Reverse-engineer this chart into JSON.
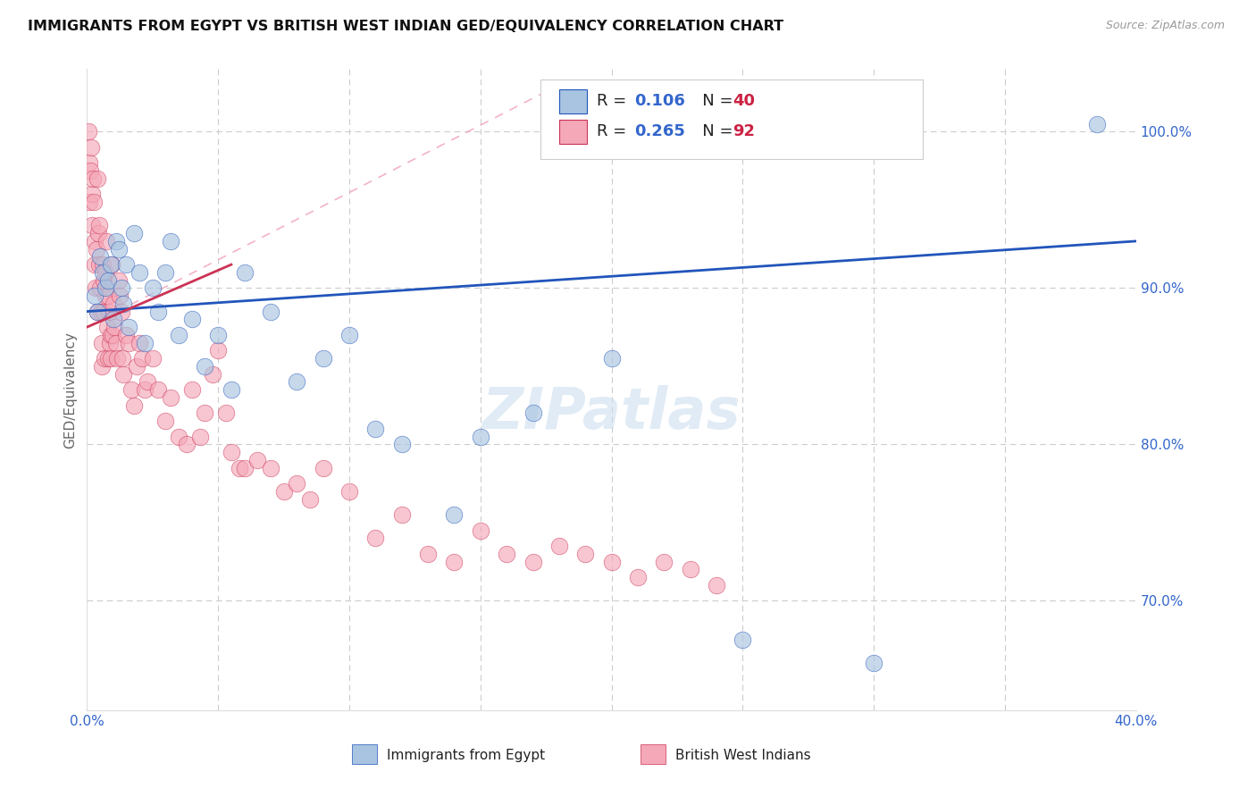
{
  "title": "IMMIGRANTS FROM EGYPT VS BRITISH WEST INDIAN GED/EQUIVALENCY CORRELATION CHART",
  "source": "Source: ZipAtlas.com",
  "ylabel": "GED/Equivalency",
  "xlim": [
    0.0,
    40.0
  ],
  "ylim": [
    63.0,
    104.0
  ],
  "legend_egypt": "Immigrants from Egypt",
  "legend_bwi": "British West Indians",
  "R_egypt": "0.106",
  "N_egypt": "40",
  "R_bwi": "0.265",
  "N_bwi": "92",
  "egypt_color": "#A8C4E0",
  "bwi_color": "#F4A8B8",
  "egypt_line_color": "#2255BB",
  "bwi_line_color": "#CC3355",
  "egypt_trend": [
    0.0,
    40.0,
    88.5,
    93.0
  ],
  "bwi_trend": [
    0.0,
    5.5,
    87.5,
    91.5
  ],
  "ref_line": [
    0.0,
    18.0,
    87.5,
    103.0
  ],
  "egypt_scatter_x": [
    0.3,
    0.4,
    0.5,
    0.6,
    0.7,
    0.8,
    0.9,
    1.0,
    1.1,
    1.2,
    1.3,
    1.4,
    1.5,
    1.6,
    1.8,
    2.0,
    2.2,
    2.5,
    2.7,
    3.0,
    3.2,
    3.5,
    4.0,
    4.5,
    5.0,
    5.5,
    6.0,
    7.0,
    8.0,
    9.0,
    10.0,
    11.0,
    12.0,
    14.0,
    15.0,
    17.0,
    20.0,
    25.0,
    30.0,
    38.5
  ],
  "egypt_scatter_y": [
    89.5,
    88.5,
    92.0,
    91.0,
    90.0,
    90.5,
    91.5,
    88.0,
    93.0,
    92.5,
    90.0,
    89.0,
    91.5,
    87.5,
    93.5,
    91.0,
    86.5,
    90.0,
    88.5,
    91.0,
    93.0,
    87.0,
    88.0,
    85.0,
    87.0,
    83.5,
    91.0,
    88.5,
    84.0,
    85.5,
    87.0,
    81.0,
    80.0,
    75.5,
    80.5,
    82.0,
    85.5,
    67.5,
    66.0,
    100.5
  ],
  "bwi_scatter_x": [
    0.05,
    0.08,
    0.1,
    0.12,
    0.15,
    0.18,
    0.2,
    0.22,
    0.25,
    0.28,
    0.3,
    0.32,
    0.35,
    0.38,
    0.4,
    0.42,
    0.45,
    0.48,
    0.5,
    0.52,
    0.55,
    0.58,
    0.6,
    0.62,
    0.65,
    0.68,
    0.7,
    0.72,
    0.75,
    0.78,
    0.8,
    0.82,
    0.85,
    0.88,
    0.9,
    0.92,
    0.95,
    0.98,
    1.0,
    1.05,
    1.1,
    1.15,
    1.2,
    1.25,
    1.3,
    1.35,
    1.4,
    1.5,
    1.6,
    1.7,
    1.8,
    1.9,
    2.0,
    2.1,
    2.2,
    2.3,
    2.5,
    2.7,
    3.0,
    3.2,
    3.5,
    3.8,
    4.0,
    4.3,
    4.5,
    4.8,
    5.0,
    5.3,
    5.5,
    5.8,
    6.0,
    6.5,
    7.0,
    7.5,
    8.0,
    8.5,
    9.0,
    10.0,
    11.0,
    12.0,
    13.0,
    14.0,
    15.0,
    16.0,
    17.0,
    18.0,
    19.0,
    20.0,
    21.0,
    22.0,
    23.0,
    24.0
  ],
  "bwi_scatter_y": [
    100.0,
    98.0,
    95.5,
    97.5,
    99.0,
    96.0,
    94.0,
    97.0,
    95.5,
    93.0,
    91.5,
    90.0,
    92.5,
    88.5,
    97.0,
    93.5,
    91.5,
    94.0,
    90.0,
    88.5,
    86.5,
    85.0,
    91.5,
    90.5,
    88.5,
    85.5,
    91.0,
    89.5,
    93.0,
    87.5,
    89.5,
    85.5,
    88.5,
    86.5,
    87.0,
    85.5,
    91.5,
    87.0,
    89.0,
    87.5,
    86.5,
    85.5,
    90.5,
    89.5,
    88.5,
    85.5,
    84.5,
    87.0,
    86.5,
    83.5,
    82.5,
    85.0,
    86.5,
    85.5,
    83.5,
    84.0,
    85.5,
    83.5,
    81.5,
    83.0,
    80.5,
    80.0,
    83.5,
    80.5,
    82.0,
    84.5,
    86.0,
    82.0,
    79.5,
    78.5,
    78.5,
    79.0,
    78.5,
    77.0,
    77.5,
    76.5,
    78.5,
    77.0,
    74.0,
    75.5,
    73.0,
    72.5,
    74.5,
    73.0,
    72.5,
    73.5,
    73.0,
    72.5,
    71.5,
    72.5,
    72.0,
    71.0
  ]
}
